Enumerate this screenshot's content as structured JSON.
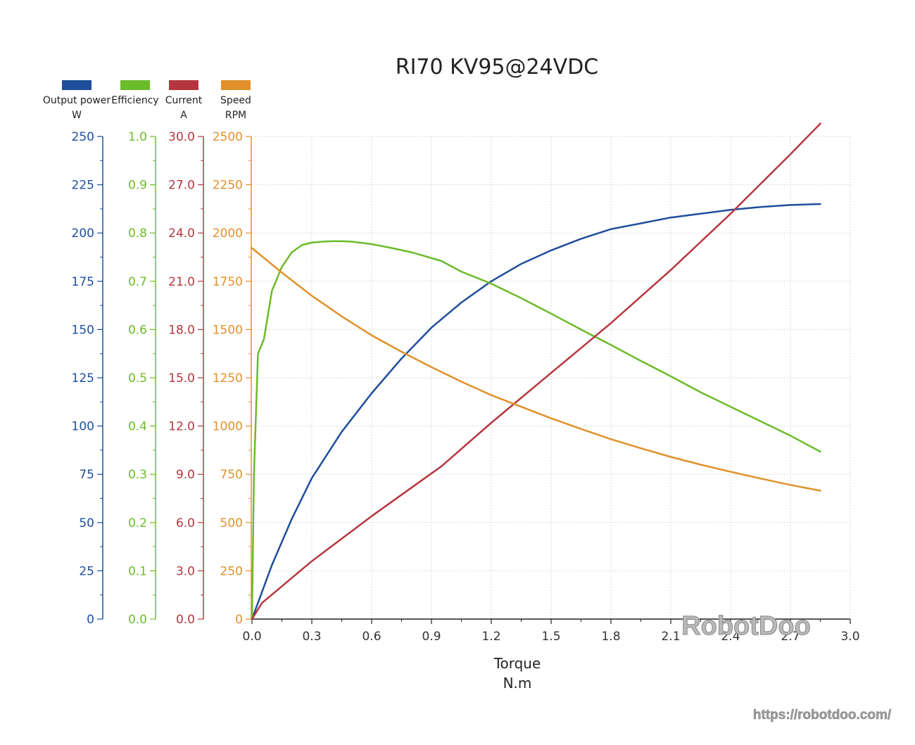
{
  "chart_data": {
    "type": "line",
    "title": "RI70 KV95@24VDC",
    "xlabel": "Torque",
    "xunit": "N.m",
    "xlim": [
      0,
      3.0
    ],
    "xticks": [
      "0.0",
      "0.3",
      "0.6",
      "0.9",
      "1.2",
      "1.5",
      "1.8",
      "2.1",
      "2.4",
      "2.7",
      "3.0"
    ],
    "grid": true,
    "legend_position": "top-left",
    "axes": [
      {
        "id": "power",
        "name": "Output power",
        "unit": "W",
        "color": "#1f4e9c",
        "ylim": [
          0,
          250
        ],
        "ticks": [
          "0",
          "25",
          "50",
          "75",
          "100",
          "125",
          "150",
          "175",
          "200",
          "225",
          "250"
        ]
      },
      {
        "id": "eff",
        "name": "Efficiency",
        "unit": "",
        "color": "#6cbb2a",
        "ylim": [
          0,
          1.0
        ],
        "ticks": [
          "0.0",
          "0.1",
          "0.2",
          "0.3",
          "0.4",
          "0.5",
          "0.6",
          "0.7",
          "0.8",
          "0.9",
          "1.0"
        ]
      },
      {
        "id": "cur",
        "name": "Current",
        "unit": "A",
        "color": "#b5363f",
        "ylim": [
          0,
          30
        ],
        "ticks": [
          "0.0",
          "3.0",
          "6.0",
          "9.0",
          "12.0",
          "15.0",
          "18.0",
          "21.0",
          "24.0",
          "27.0",
          "30.0"
        ]
      },
      {
        "id": "spd",
        "name": "Speed",
        "unit": "RPM",
        "color": "#e0912a",
        "ylim": [
          0,
          2500
        ],
        "ticks": [
          "0",
          "250",
          "500",
          "750",
          "1000",
          "1250",
          "1500",
          "1750",
          "2000",
          "2250",
          "2500"
        ]
      }
    ],
    "series": [
      {
        "name": "Output power",
        "axis": "power",
        "color": "#1f4e9c",
        "x": [
          0,
          0.05,
          0.1,
          0.2,
          0.3,
          0.45,
          0.6,
          0.75,
          0.9,
          1.05,
          1.2,
          1.35,
          1.5,
          1.65,
          1.8,
          1.95,
          2.1,
          2.25,
          2.4,
          2.55,
          2.7,
          2.85
        ],
        "y": [
          0,
          14,
          28,
          52,
          73,
          97,
          117,
          135,
          151,
          164,
          175,
          184,
          191,
          197,
          202,
          205,
          208,
          210,
          212,
          213.5,
          214.5,
          215
        ]
      },
      {
        "name": "Efficiency",
        "axis": "eff",
        "color": "#6cbb2a",
        "x": [
          0,
          0.01,
          0.03,
          0.06,
          0.1,
          0.15,
          0.2,
          0.25,
          0.3,
          0.35,
          0.4,
          0.45,
          0.5,
          0.6,
          0.7,
          0.8,
          0.95,
          1.05,
          1.2,
          1.35,
          1.5,
          1.65,
          1.8,
          1.95,
          2.1,
          2.25,
          2.4,
          2.55,
          2.7,
          2.85
        ],
        "y": [
          0,
          0.3,
          0.55,
          0.58,
          0.68,
          0.73,
          0.76,
          0.775,
          0.78,
          0.782,
          0.783,
          0.783,
          0.782,
          0.777,
          0.769,
          0.76,
          0.742,
          0.72,
          0.695,
          0.665,
          0.633,
          0.6,
          0.568,
          0.535,
          0.503,
          0.47,
          0.44,
          0.41,
          0.38,
          0.347
        ]
      },
      {
        "name": "Current",
        "axis": "cur",
        "color": "#b5363f",
        "x": [
          0,
          0.05,
          0.3,
          0.6,
          0.95,
          1.2,
          1.5,
          1.8,
          2.1,
          2.4,
          2.7,
          2.85
        ],
        "y": [
          0,
          1,
          3.6,
          6.4,
          9.5,
          12.2,
          15.3,
          18.4,
          21.7,
          25.2,
          28.9,
          30.8
        ]
      },
      {
        "name": "Speed",
        "axis": "spd",
        "color": "#e0912a",
        "x": [
          0,
          0.15,
          0.3,
          0.45,
          0.6,
          0.75,
          0.9,
          1.05,
          1.2,
          1.35,
          1.5,
          1.65,
          1.8,
          1.95,
          2.1,
          2.25,
          2.4,
          2.55,
          2.7,
          2.85
        ],
        "y": [
          1922,
          1795,
          1675,
          1568,
          1470,
          1385,
          1305,
          1230,
          1160,
          1100,
          1040,
          985,
          932,
          885,
          840,
          800,
          763,
          728,
          695,
          665
        ]
      }
    ]
  },
  "watermark": "RobotDoo",
  "url": "https://robotdoo.com/"
}
